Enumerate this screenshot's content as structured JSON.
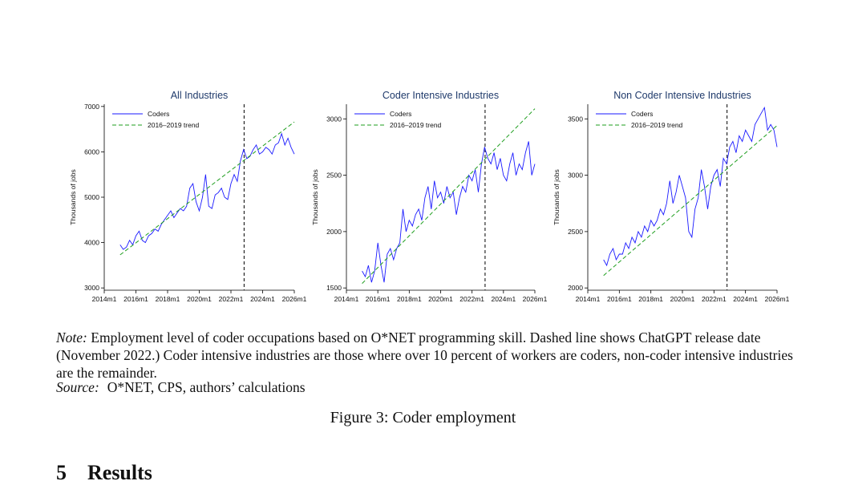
{
  "chart_data": [
    {
      "type": "line",
      "title": "All Industries",
      "ylabel": "Thousands of jobs",
      "xlim": [
        2014.0,
        2026.0
      ],
      "ylim": [
        2950,
        7050
      ],
      "yticks": [
        3000,
        4000,
        5000,
        6000,
        7000
      ],
      "xtick_labels": [
        "2014m1",
        "2016m1",
        "2018m1",
        "2020m1",
        "2022m1",
        "2024m1",
        "2026m1"
      ],
      "vline": 2022.83,
      "legend": "top-left",
      "series": [
        {
          "name": "Coders",
          "style": "solid",
          "x": [
            2015.0,
            2015.2,
            2015.4,
            2015.6,
            2015.8,
            2016.0,
            2016.2,
            2016.4,
            2016.6,
            2016.8,
            2017.0,
            2017.2,
            2017.4,
            2017.6,
            2017.8,
            2018.0,
            2018.2,
            2018.4,
            2018.6,
            2018.8,
            2019.0,
            2019.2,
            2019.4,
            2019.6,
            2019.8,
            2020.0,
            2020.2,
            2020.4,
            2020.6,
            2020.8,
            2021.0,
            2021.2,
            2021.4,
            2021.6,
            2021.8,
            2022.0,
            2022.2,
            2022.4,
            2022.6,
            2022.8,
            2023.0,
            2023.2,
            2023.4,
            2023.6,
            2023.8,
            2024.0,
            2024.2,
            2024.4,
            2024.6,
            2024.8,
            2025.0,
            2025.2,
            2025.4,
            2025.6,
            2025.8,
            2026.0
          ],
          "y": [
            3950,
            3850,
            3900,
            4050,
            3950,
            4150,
            4250,
            4050,
            4000,
            4150,
            4200,
            4300,
            4250,
            4400,
            4500,
            4600,
            4700,
            4550,
            4650,
            4750,
            4700,
            4800,
            5200,
            5300,
            4900,
            4700,
            5000,
            5500,
            4800,
            4750,
            5050,
            5100,
            5200,
            5000,
            4950,
            5300,
            5500,
            5350,
            5800,
            6050,
            5850,
            5900,
            6050,
            6150,
            5950,
            6000,
            6100,
            6050,
            5950,
            6150,
            6200,
            6400,
            6150,
            6300,
            6100,
            5950
          ]
        },
        {
          "name": "2016–2019 trend",
          "style": "dashed",
          "x": [
            2015.0,
            2026.0
          ],
          "y": [
            3730,
            6660
          ]
        }
      ]
    },
    {
      "type": "line",
      "title": "Coder Intensive Industries",
      "ylabel": "Thousands of jobs",
      "xlim": [
        2014.0,
        2026.0
      ],
      "ylim": [
        1480,
        3130
      ],
      "yticks": [
        1500,
        2000,
        2500,
        3000
      ],
      "xtick_labels": [
        "2014m1",
        "2016m1",
        "2018m1",
        "2020m1",
        "2022m1",
        "2024m1",
        "2026m1"
      ],
      "vline": 2022.83,
      "legend": "top-left",
      "series": [
        {
          "name": "Coders",
          "style": "solid",
          "x": [
            2015.0,
            2015.2,
            2015.4,
            2015.6,
            2015.8,
            2016.0,
            2016.2,
            2016.4,
            2016.6,
            2016.8,
            2017.0,
            2017.2,
            2017.4,
            2017.6,
            2017.8,
            2018.0,
            2018.2,
            2018.4,
            2018.6,
            2018.8,
            2019.0,
            2019.2,
            2019.4,
            2019.6,
            2019.8,
            2020.0,
            2020.2,
            2020.4,
            2020.6,
            2020.8,
            2021.0,
            2021.2,
            2021.4,
            2021.6,
            2021.8,
            2022.0,
            2022.2,
            2022.4,
            2022.6,
            2022.8,
            2023.0,
            2023.2,
            2023.4,
            2023.6,
            2023.8,
            2024.0,
            2024.2,
            2024.4,
            2024.6,
            2024.8,
            2025.0,
            2025.2,
            2025.4,
            2025.6,
            2025.8,
            2026.0
          ],
          "y": [
            1650,
            1600,
            1700,
            1550,
            1650,
            1900,
            1700,
            1550,
            1800,
            1850,
            1750,
            1850,
            1900,
            2200,
            2000,
            2100,
            2050,
            2150,
            2200,
            2100,
            2300,
            2400,
            2200,
            2450,
            2300,
            2350,
            2250,
            2400,
            2300,
            2350,
            2150,
            2300,
            2400,
            2350,
            2500,
            2450,
            2550,
            2350,
            2600,
            2750,
            2650,
            2600,
            2700,
            2550,
            2650,
            2500,
            2450,
            2600,
            2700,
            2500,
            2600,
            2550,
            2700,
            2800,
            2500,
            2600
          ]
        },
        {
          "name": "2016–2019 trend",
          "style": "dashed",
          "x": [
            2015.0,
            2026.0
          ],
          "y": [
            1540,
            3090
          ]
        }
      ]
    },
    {
      "type": "line",
      "title": "Non Coder Intensive Industries",
      "ylabel": "Thousands of jobs",
      "xlim": [
        2014.0,
        2026.0
      ],
      "ylim": [
        1980,
        3630
      ],
      "yticks": [
        2000,
        2500,
        3000,
        3500
      ],
      "xtick_labels": [
        "2014m1",
        "2016m1",
        "2018m1",
        "2020m1",
        "2022m1",
        "2024m1",
        "2026m1"
      ],
      "vline": 2022.83,
      "legend": "top-left",
      "series": [
        {
          "name": "Coders",
          "style": "solid",
          "x": [
            2015.0,
            2015.2,
            2015.4,
            2015.6,
            2015.8,
            2016.0,
            2016.2,
            2016.4,
            2016.6,
            2016.8,
            2017.0,
            2017.2,
            2017.4,
            2017.6,
            2017.8,
            2018.0,
            2018.2,
            2018.4,
            2018.6,
            2018.8,
            2019.0,
            2019.2,
            2019.4,
            2019.6,
            2019.8,
            2020.0,
            2020.2,
            2020.4,
            2020.6,
            2020.8,
            2021.0,
            2021.2,
            2021.4,
            2021.6,
            2021.8,
            2022.0,
            2022.2,
            2022.4,
            2022.6,
            2022.8,
            2023.0,
            2023.2,
            2023.4,
            2023.6,
            2023.8,
            2024.0,
            2024.2,
            2024.4,
            2024.6,
            2024.8,
            2025.0,
            2025.2,
            2025.4,
            2025.6,
            2025.8,
            2026.0
          ],
          "y": [
            2250,
            2200,
            2300,
            2350,
            2250,
            2300,
            2300,
            2400,
            2350,
            2450,
            2400,
            2500,
            2450,
            2550,
            2500,
            2600,
            2550,
            2600,
            2700,
            2650,
            2750,
            2950,
            2750,
            2850,
            3000,
            2900,
            2800,
            2500,
            2450,
            2700,
            2800,
            3050,
            2900,
            2700,
            2900,
            3000,
            3050,
            2900,
            3150,
            3100,
            3250,
            3300,
            3200,
            3350,
            3300,
            3400,
            3350,
            3300,
            3450,
            3500,
            3550,
            3600,
            3400,
            3450,
            3400,
            3250
          ]
        },
        {
          "name": "2016–2019 trend",
          "style": "dashed",
          "x": [
            2015.0,
            2026.0
          ],
          "y": [
            2110,
            3440
          ]
        }
      ]
    }
  ],
  "colors": {
    "coders": "#1a1aff",
    "trend": "#1e9e1e",
    "title": "#1f3a6b"
  },
  "caption": {
    "note_label": "Note:",
    "note_text": "Employment level of coder occupations based on O*NET programming skill. Dashed line shows ChatGPT release date (November 2022.) Coder intensive industries are those where over 10 percent of workers are coders, non-coder intensive industries are the remainder.",
    "source_label": "Source:",
    "source_text": "O*NET, CPS, authors’ calculations",
    "figure_caption": "Figure 3: Coder employment"
  },
  "section": {
    "number": "5",
    "title": "Results"
  }
}
